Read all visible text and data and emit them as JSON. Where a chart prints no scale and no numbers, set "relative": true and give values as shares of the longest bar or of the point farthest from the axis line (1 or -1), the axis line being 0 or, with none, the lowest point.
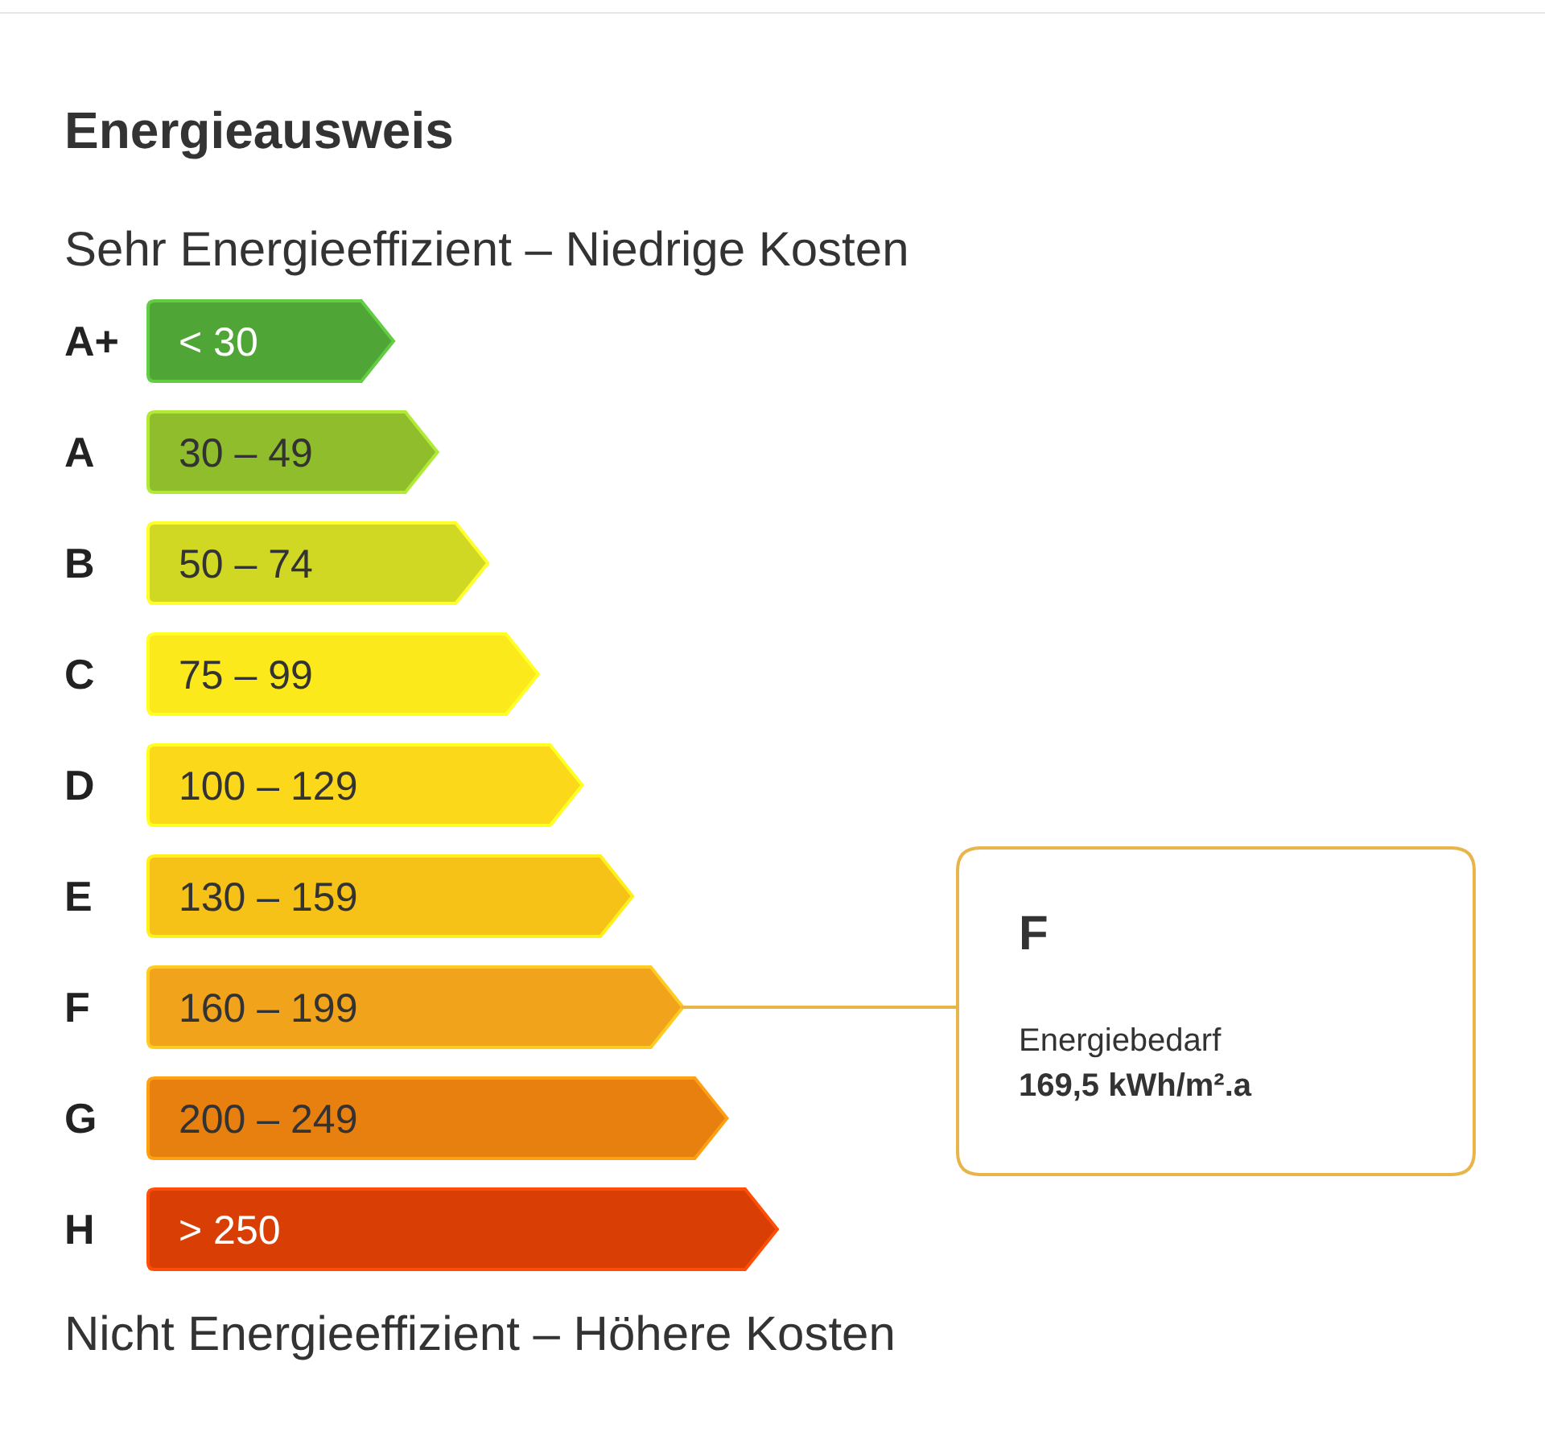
{
  "chart_data": {
    "type": "bar",
    "orientation": "horizontal",
    "relative": true,
    "title": "Energieausweis",
    "subtitle": "Sehr Energieeffizient – Niedrige Kosten",
    "categories": [
      "A+",
      "A",
      "B",
      "C",
      "D",
      "E",
      "F",
      "G",
      "H"
    ],
    "values": [
      0.39,
      0.46,
      0.54,
      0.62,
      0.69,
      0.77,
      0.85,
      0.92,
      1
    ],
    "colors": [
      "#4fa535",
      "#8fbd2b",
      "#d0d823",
      "#fbe91c",
      "#fbd81a",
      "#f6c217",
      "#f0a31b",
      "#e8800f",
      "#d93f05"
    ],
    "annotations": [
      "< 30",
      "30 – 49",
      "50 – 74",
      "75 – 99",
      "100 – 129",
      "130 – 159",
      "160 – 199",
      "200 – 249",
      "> 250",
      "F",
      "Energiebedarf",
      "169,5 kWh/m².a",
      "Nicht Energieeffizient – Höhere Kosten"
    ]
  }
}
